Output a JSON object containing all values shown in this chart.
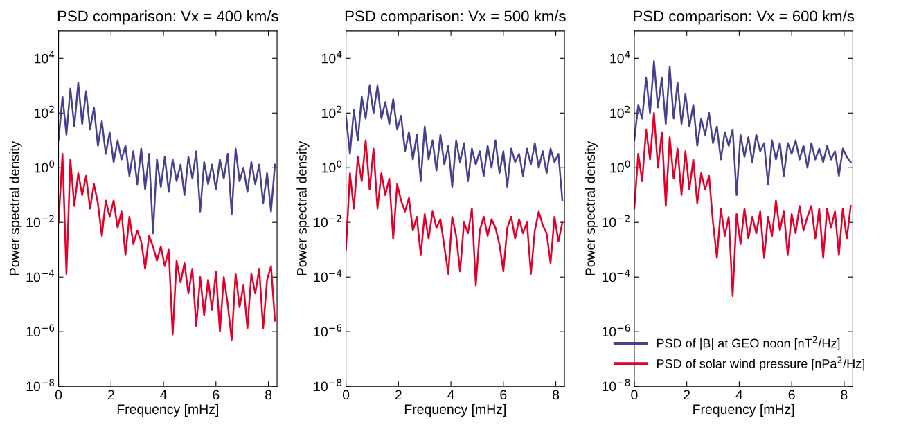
{
  "chart_data": [
    {
      "type": "line",
      "title": "PSD comparison: Vx = 400 km/s",
      "xlabel": "Frequency [mHz]",
      "ylabel": "Power spectral density",
      "log": "y",
      "grid": false,
      "legend": false,
      "xlim": [
        0,
        8.33
      ],
      "xticks": [
        0,
        2,
        4,
        6,
        8
      ],
      "ylim": [
        1e-08,
        100000.0
      ],
      "yticks": [
        {
          "value": 1e-08,
          "label": "10$^{−8}$"
        },
        {
          "value": 1e-06,
          "label": "10$^{−6}$"
        },
        {
          "value": 0.0001,
          "label": "10$^{−4}$"
        },
        {
          "value": 0.01,
          "label": "10$^{−2}$"
        },
        {
          "value": 1,
          "label": "10$^{0}$"
        },
        {
          "value": 100,
          "label": "10$^{2}$"
        },
        {
          "value": 10000,
          "label": "10$^{4}$"
        }
      ],
      "x": [
        0,
        0.15,
        0.3,
        0.45,
        0.6,
        0.75,
        0.9,
        1.05,
        1.2,
        1.35,
        1.5,
        1.65,
        1.8,
        1.95,
        2.1,
        2.25,
        2.4,
        2.55,
        2.7,
        2.85,
        3.0,
        3.15,
        3.3,
        3.45,
        3.6,
        3.75,
        3.9,
        4.05,
        4.2,
        4.35,
        4.5,
        4.65,
        4.8,
        4.95,
        5.1,
        5.25,
        5.4,
        5.55,
        5.7,
        5.85,
        6.0,
        6.15,
        6.3,
        6.45,
        6.6,
        6.75,
        6.9,
        7.05,
        7.2,
        7.35,
        7.5,
        7.65,
        7.8,
        7.95,
        8.1,
        8.25
      ],
      "series": [
        {
          "color": "#46418f",
          "values": [
            10.0,
            400.0,
            16.0,
            790.0,
            32.0,
            1300.0,
            40.0,
            630.0,
            25.0,
            160.0,
            6.3,
            50.0,
            3.2,
            20.0,
            1.6,
            10.0,
            2,
            6.3,
            0.5,
            4,
            0.25,
            5,
            0.16,
            3.2,
            0.004,
            2,
            0.2,
            2.5,
            0.13,
            2,
            0.32,
            1.3,
            0.1,
            2.5,
            0.4,
            4,
            0.025,
            1.6,
            0.25,
            1.3,
            0.16,
            2,
            0.4,
            3.2,
            0.02,
            5,
            0.32,
            1,
            0.13,
            1.6,
            0.25,
            1.3,
            0.05,
            0.63,
            0.025,
            1.3
          ]
        },
        {
          "color": "#e0002a",
          "values": [
            0.01,
            3.2,
            0.00013,
            2,
            0.04,
            0.63,
            0.1,
            0.5,
            0.032,
            0.25,
            0.05,
            0.0032,
            0.063,
            0.016,
            0.063,
            0.0063,
            0.025,
            0.00063,
            0.016,
            0.0016,
            0.005,
            0.002,
            0.0002,
            0.0032,
            0.0013,
            0.0004,
            0.0013,
            0.00025,
            0.001,
            7.9e-07,
            0.0004,
            6.3e-05,
            0.00032,
            2.5e-05,
            0.0002,
            1.6e-06,
            0.0001,
            4e-06,
            7.9e-05,
            6.3e-06,
            0.00016,
            1e-06,
            0.0001,
            1e-05,
            5e-07,
            0.00013,
            7.9e-06,
            5e-05,
            1.3e-06,
            0.00013,
            2.5e-05,
            0.0002,
            1.3e-06,
            7.9e-05,
            0.00025,
            2.5e-06
          ]
        }
      ]
    },
    {
      "type": "line",
      "title": "PSD comparison: Vx = 500 km/s",
      "xlabel": "Frequency [mHz]",
      "ylabel": "Power spectral density",
      "log": "y",
      "grid": false,
      "legend": false,
      "xlim": [
        0,
        8.33
      ],
      "xticks": [
        0,
        2,
        4,
        6,
        8
      ],
      "ylim": [
        1e-08,
        100000.0
      ],
      "yticks": [
        {
          "value": 1e-08,
          "label": "10$^{−8}$"
        },
        {
          "value": 1e-06,
          "label": "10$^{−6}$"
        },
        {
          "value": 0.0001,
          "label": "10$^{−4}$"
        },
        {
          "value": 0.01,
          "label": "10$^{−2}$"
        },
        {
          "value": 1,
          "label": "10$^{0}$"
        },
        {
          "value": 100,
          "label": "10$^{2}$"
        },
        {
          "value": 10000,
          "label": "10$^{4}$"
        }
      ],
      "x": [
        0,
        0.15,
        0.3,
        0.45,
        0.6,
        0.75,
        0.9,
        1.05,
        1.2,
        1.35,
        1.5,
        1.65,
        1.8,
        1.95,
        2.1,
        2.25,
        2.4,
        2.55,
        2.7,
        2.85,
        3.0,
        3.15,
        3.3,
        3.45,
        3.6,
        3.75,
        3.9,
        4.05,
        4.2,
        4.35,
        4.5,
        4.65,
        4.8,
        4.95,
        5.1,
        5.25,
        5.4,
        5.55,
        5.7,
        5.85,
        6.0,
        6.15,
        6.3,
        6.45,
        6.6,
        6.75,
        6.9,
        7.05,
        7.2,
        7.35,
        7.5,
        7.65,
        7.8,
        7.95,
        8.1,
        8.25
      ],
      "series": [
        {
          "color": "#46418f",
          "values": [
            79.0,
            3.2,
            130.0,
            10.0,
            400.0,
            63.0,
            1000.0,
            100.0,
            1000.0,
            63.0,
            250.0,
            40.0,
            320.0,
            25.0,
            79.0,
            4,
            20.0,
            2,
            16.0,
            0.32,
            32.0,
            2,
            10.0,
            0.79,
            16.0,
            1.3,
            6.3,
            0.2,
            10.0,
            1.6,
            7.9,
            0.32,
            5,
            1.3,
            4,
            0.5,
            6.3,
            1,
            10.0,
            0.63,
            4,
            0.2,
            5,
            1.6,
            3.2,
            0.5,
            5,
            1.3,
            7.9,
            1,
            4,
            0.63,
            5,
            1.6,
            3.2,
            0.063
          ]
        },
        {
          "color": "#e0002a",
          "values": [
            0.001,
            0.63,
            0.032,
            2.5,
            0.32,
            10.0,
            0.16,
            5,
            0.032,
            0.63,
            0.1,
            0.4,
            0.0025,
            0.25,
            0.063,
            0.025,
            0.079,
            0.005,
            0.016,
            0.00063,
            0.02,
            0.0025,
            0.025,
            0.0063,
            0.013,
            0.0013,
            0.00013,
            0.016,
            0.0032,
            0.00016,
            0.01,
            0.004,
            0.032,
            5e-05,
            0.005,
            0.016,
            0.0032,
            0.013,
            0.0063,
            0.0016,
            0.00016,
            0.0063,
            0.016,
            0.0025,
            0.013,
            0.004,
            0.01,
            0.00013,
            0.005,
            0.025,
            0.0079,
            0.004,
            0.00032,
            0.016,
            0.002,
            0.01
          ]
        }
      ]
    },
    {
      "type": "line",
      "title": "PSD comparison: Vx = 600 km/s",
      "xlabel": "Frequency [mHz]",
      "ylabel": "Power spectral density",
      "log": "y",
      "grid": false,
      "legend": "bottom right",
      "xlim": [
        0,
        8.33
      ],
      "xticks": [
        0,
        2,
        4,
        6,
        8
      ],
      "ylim": [
        1e-08,
        100000.0
      ],
      "yticks": [
        {
          "value": 1e-08,
          "label": "10$^{−8}$"
        },
        {
          "value": 1e-06,
          "label": "10$^{−6}$"
        },
        {
          "value": 0.0001,
          "label": "10$^{−4}$"
        },
        {
          "value": 0.01,
          "label": "10$^{−2}$"
        },
        {
          "value": 1,
          "label": "10$^{0}$"
        },
        {
          "value": 100,
          "label": "10$^{2}$"
        },
        {
          "value": 10000,
          "label": "10$^{4}$"
        }
      ],
      "x": [
        0,
        0.15,
        0.3,
        0.45,
        0.6,
        0.75,
        0.9,
        1.05,
        1.2,
        1.35,
        1.5,
        1.65,
        1.8,
        1.95,
        2.1,
        2.25,
        2.4,
        2.55,
        2.7,
        2.85,
        3.0,
        3.15,
        3.3,
        3.45,
        3.6,
        3.75,
        3.9,
        4.05,
        4.2,
        4.35,
        4.5,
        4.65,
        4.8,
        4.95,
        5.1,
        5.25,
        5.4,
        5.55,
        5.7,
        5.85,
        6.0,
        6.15,
        6.3,
        6.45,
        6.6,
        6.75,
        6.9,
        7.05,
        7.2,
        7.35,
        7.5,
        7.65,
        7.8,
        7.95,
        8.1,
        8.25
      ],
      "series": [
        {
          "name": "PSD of |B| at GEO noon [nT$^{2}$/Hz]",
          "color": "#46418f",
          "values": [
            10.0,
            200.0,
            63.0,
            2000.0,
            100.0,
            7900.0,
            160.0,
            2000.0,
            40.0,
            5000.0,
            63.0,
            1300.0,
            40.0,
            500.0,
            32.0,
            200.0,
            6.3,
            63.0,
            16.0,
            100.0,
            7.9,
            32.0,
            2,
            20.0,
            6.3,
            25.0,
            0.1,
            16.0,
            2.5,
            13.0,
            1.6,
            16.0,
            4,
            7.9,
            0.25,
            10.0,
            2,
            7.9,
            0.5,
            7.9,
            3.2,
            10.0,
            2,
            6.3,
            1,
            7.9,
            2,
            5,
            1.6,
            6.3,
            2,
            4,
            0.5,
            5,
            2.5,
            1.6
          ]
        },
        {
          "name": "PSD of solar wind pressure [nPa$^{2}$/Hz]",
          "color": "#e0002a",
          "values": [
            0.032,
            3.2,
            0.32,
            25.0,
            2,
            100.0,
            1,
            20.0,
            0.04,
            13.0,
            0.4,
            5,
            0.1,
            4,
            0.16,
            2,
            0.05,
            0.63,
            0.16,
            0.5,
            0.01,
            0.0005,
            0.032,
            0.0032,
            0.016,
            2e-05,
            0.02,
            0.0016,
            0.032,
            0.0025,
            0.016,
            0.004,
            0.025,
            0.0005,
            0.016,
            0.0032,
            0.063,
            0.005,
            0.025,
            0.00063,
            0.02,
            0.004,
            0.04,
            0.005,
            0.016,
            0.04,
            0.0025,
            0.032,
            0.0005,
            0.032,
            0.0063,
            0.025,
            0.00063,
            0.032,
            0.0025,
            0.04
          ]
        }
      ]
    }
  ]
}
